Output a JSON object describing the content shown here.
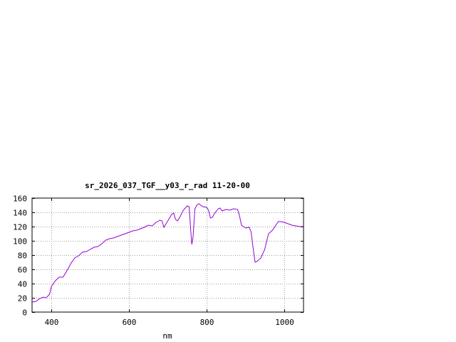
{
  "chart_data": {
    "type": "line",
    "title": "sr_2026_037_TGF__y03_r_rad 11-20-00",
    "xlabel": "nm",
    "ylabel": "",
    "xlim": [
      350,
      1050
    ],
    "ylim": [
      0,
      160
    ],
    "xticks": [
      400,
      600,
      800,
      1000
    ],
    "yticks": [
      0,
      20,
      40,
      60,
      80,
      100,
      120,
      140,
      160
    ],
    "grid": true,
    "legend": "none",
    "series": [
      {
        "color": "#9400d3",
        "points": [
          [
            350,
            14
          ],
          [
            360,
            15
          ],
          [
            370,
            19
          ],
          [
            380,
            21
          ],
          [
            385,
            20
          ],
          [
            390,
            22
          ],
          [
            395,
            25
          ],
          [
            400,
            36
          ],
          [
            410,
            44
          ],
          [
            420,
            49
          ],
          [
            430,
            49
          ],
          [
            440,
            58
          ],
          [
            450,
            68
          ],
          [
            460,
            76
          ],
          [
            470,
            79
          ],
          [
            480,
            84
          ],
          [
            490,
            85
          ],
          [
            500,
            88
          ],
          [
            510,
            91
          ],
          [
            520,
            92
          ],
          [
            530,
            96
          ],
          [
            540,
            101
          ],
          [
            550,
            103
          ],
          [
            560,
            104
          ],
          [
            570,
            106
          ],
          [
            580,
            108
          ],
          [
            590,
            110
          ],
          [
            600,
            112
          ],
          [
            610,
            114
          ],
          [
            620,
            115
          ],
          [
            630,
            117
          ],
          [
            640,
            119
          ],
          [
            650,
            122
          ],
          [
            660,
            121
          ],
          [
            670,
            126
          ],
          [
            680,
            129
          ],
          [
            685,
            128
          ],
          [
            690,
            119
          ],
          [
            700,
            128
          ],
          [
            710,
            137
          ],
          [
            715,
            139
          ],
          [
            720,
            130
          ],
          [
            725,
            128
          ],
          [
            730,
            132
          ],
          [
            740,
            143
          ],
          [
            750,
            149
          ],
          [
            755,
            148
          ],
          [
            760,
            108
          ],
          [
            762,
            95
          ],
          [
            765,
            105
          ],
          [
            770,
            145
          ],
          [
            775,
            150
          ],
          [
            780,
            152
          ],
          [
            790,
            148
          ],
          [
            800,
            147
          ],
          [
            805,
            143
          ],
          [
            810,
            132
          ],
          [
            815,
            133
          ],
          [
            820,
            138
          ],
          [
            830,
            145
          ],
          [
            835,
            146
          ],
          [
            840,
            142
          ],
          [
            845,
            143
          ],
          [
            850,
            144
          ],
          [
            860,
            143
          ],
          [
            870,
            145
          ],
          [
            880,
            144
          ],
          [
            885,
            135
          ],
          [
            890,
            122
          ],
          [
            900,
            118
          ],
          [
            910,
            119
          ],
          [
            915,
            112
          ],
          [
            920,
            90
          ],
          [
            925,
            70
          ],
          [
            930,
            71
          ],
          [
            940,
            76
          ],
          [
            950,
            88
          ],
          [
            955,
            100
          ],
          [
            960,
            110
          ],
          [
            970,
            115
          ],
          [
            980,
            123
          ],
          [
            985,
            127
          ],
          [
            990,
            127
          ],
          [
            1000,
            126
          ],
          [
            1010,
            124
          ],
          [
            1020,
            122
          ],
          [
            1030,
            121
          ],
          [
            1040,
            120
          ],
          [
            1050,
            120
          ]
        ]
      }
    ]
  }
}
